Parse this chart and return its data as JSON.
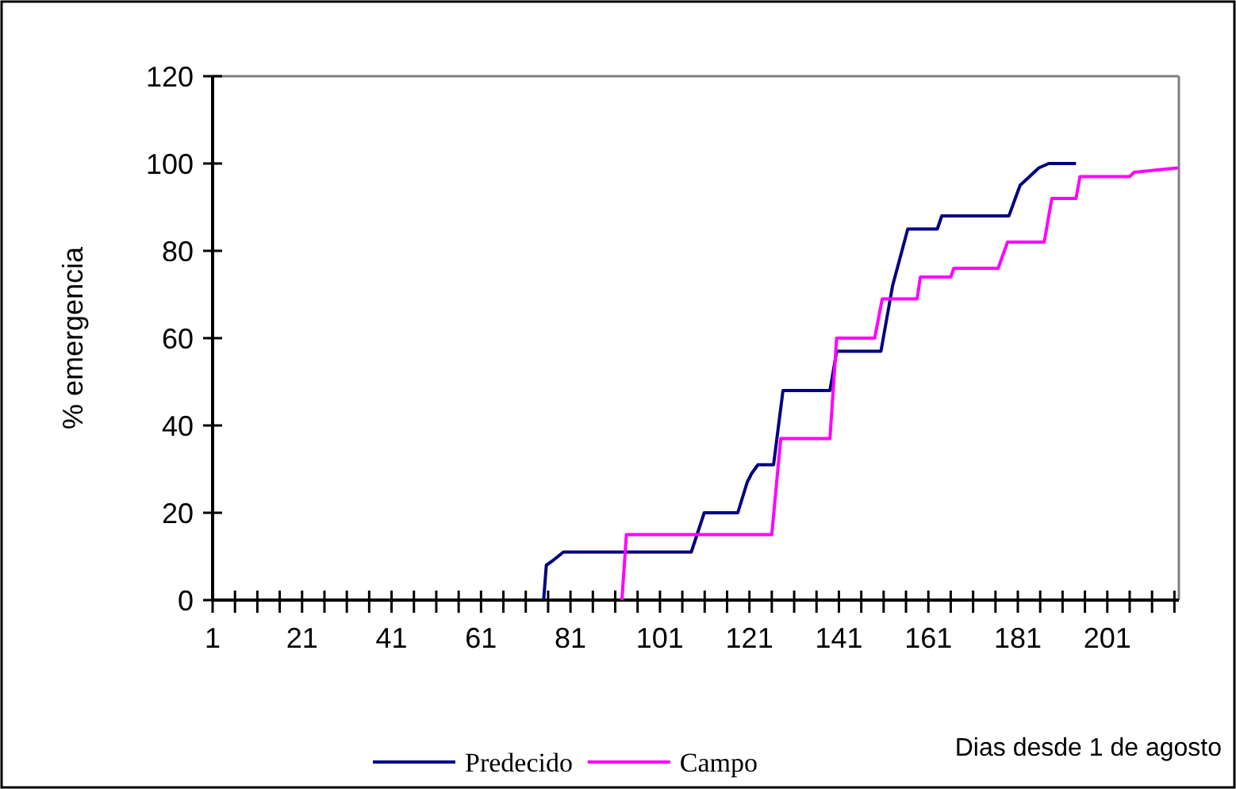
{
  "chart_data": {
    "type": "line",
    "xlabel": "Dias desde 1 de agosto",
    "ylabel": "% emergencia",
    "xlim": [
      1,
      217
    ],
    "ylim": [
      0,
      120
    ],
    "xticks": [
      1,
      {
        "value": 6,
        "label": null
      },
      {
        "value": 11,
        "label": null
      },
      {
        "value": 16,
        "label": null
      },
      21,
      {
        "value": 26,
        "label": null
      },
      {
        "value": 31,
        "label": null
      },
      {
        "value": 36,
        "label": null
      },
      41,
      {
        "value": 46,
        "label": null
      },
      {
        "value": 51,
        "label": null
      },
      {
        "value": 56,
        "label": null
      },
      61,
      {
        "value": 66,
        "label": null
      },
      {
        "value": 71,
        "label": null
      },
      {
        "value": 76,
        "label": null
      },
      81,
      {
        "value": 86,
        "label": null
      },
      {
        "value": 91,
        "label": null
      },
      {
        "value": 96,
        "label": null
      },
      101,
      {
        "value": 106,
        "label": null
      },
      {
        "value": 111,
        "label": null
      },
      {
        "value": 116,
        "label": null
      },
      121,
      {
        "value": 126,
        "label": null
      },
      {
        "value": 131,
        "label": null
      },
      {
        "value": 136,
        "label": null
      },
      141,
      {
        "value": 146,
        "label": null
      },
      {
        "value": 151,
        "label": null
      },
      {
        "value": 156,
        "label": null
      },
      161,
      {
        "value": 166,
        "label": null
      },
      {
        "value": 171,
        "label": null
      },
      {
        "value": 176,
        "label": null
      },
      181,
      {
        "value": 186,
        "label": null
      },
      {
        "value": 191,
        "label": null
      },
      {
        "value": 196,
        "label": null
      },
      201,
      {
        "value": 206,
        "label": null
      },
      {
        "value": 211,
        "label": null
      },
      {
        "value": 216,
        "label": null
      }
    ],
    "yticks": [
      0,
      20,
      40,
      60,
      80,
      100,
      120
    ],
    "grid": false,
    "legend": "bottom",
    "line_style": "solid",
    "series": [
      {
        "name": "Predecido",
        "color": "#000080",
        "x": [
          75,
          75.6,
          77,
          79.4,
          108,
          110.9,
          118.4,
          120.5,
          121.5,
          122.9,
          126.4,
          128.5,
          139,
          140.5,
          150.4,
          153,
          156.4,
          163,
          164,
          179,
          181.5,
          185.7,
          187.9,
          194
        ],
        "values": [
          0,
          8,
          9,
          11,
          11,
          20,
          20,
          27,
          29,
          31,
          31,
          48,
          48,
          57,
          57,
          72,
          85,
          85,
          88,
          88,
          95,
          99,
          100,
          100
        ]
      },
      {
        "name": "Campo",
        "color": "#ff00ff",
        "x": [
          92.5,
          93.5,
          126,
          128,
          139,
          140.5,
          149,
          150.7,
          158.5,
          159.2,
          166,
          166.7,
          176.6,
          178.7,
          186.9,
          188.6,
          194,
          194.9,
          206,
          207,
          216.8
        ],
        "values": [
          0,
          15,
          15,
          37,
          37,
          60,
          60,
          69,
          69,
          74,
          74,
          76,
          76,
          82,
          82,
          92,
          92,
          97,
          97,
          98,
          99
        ]
      }
    ]
  }
}
